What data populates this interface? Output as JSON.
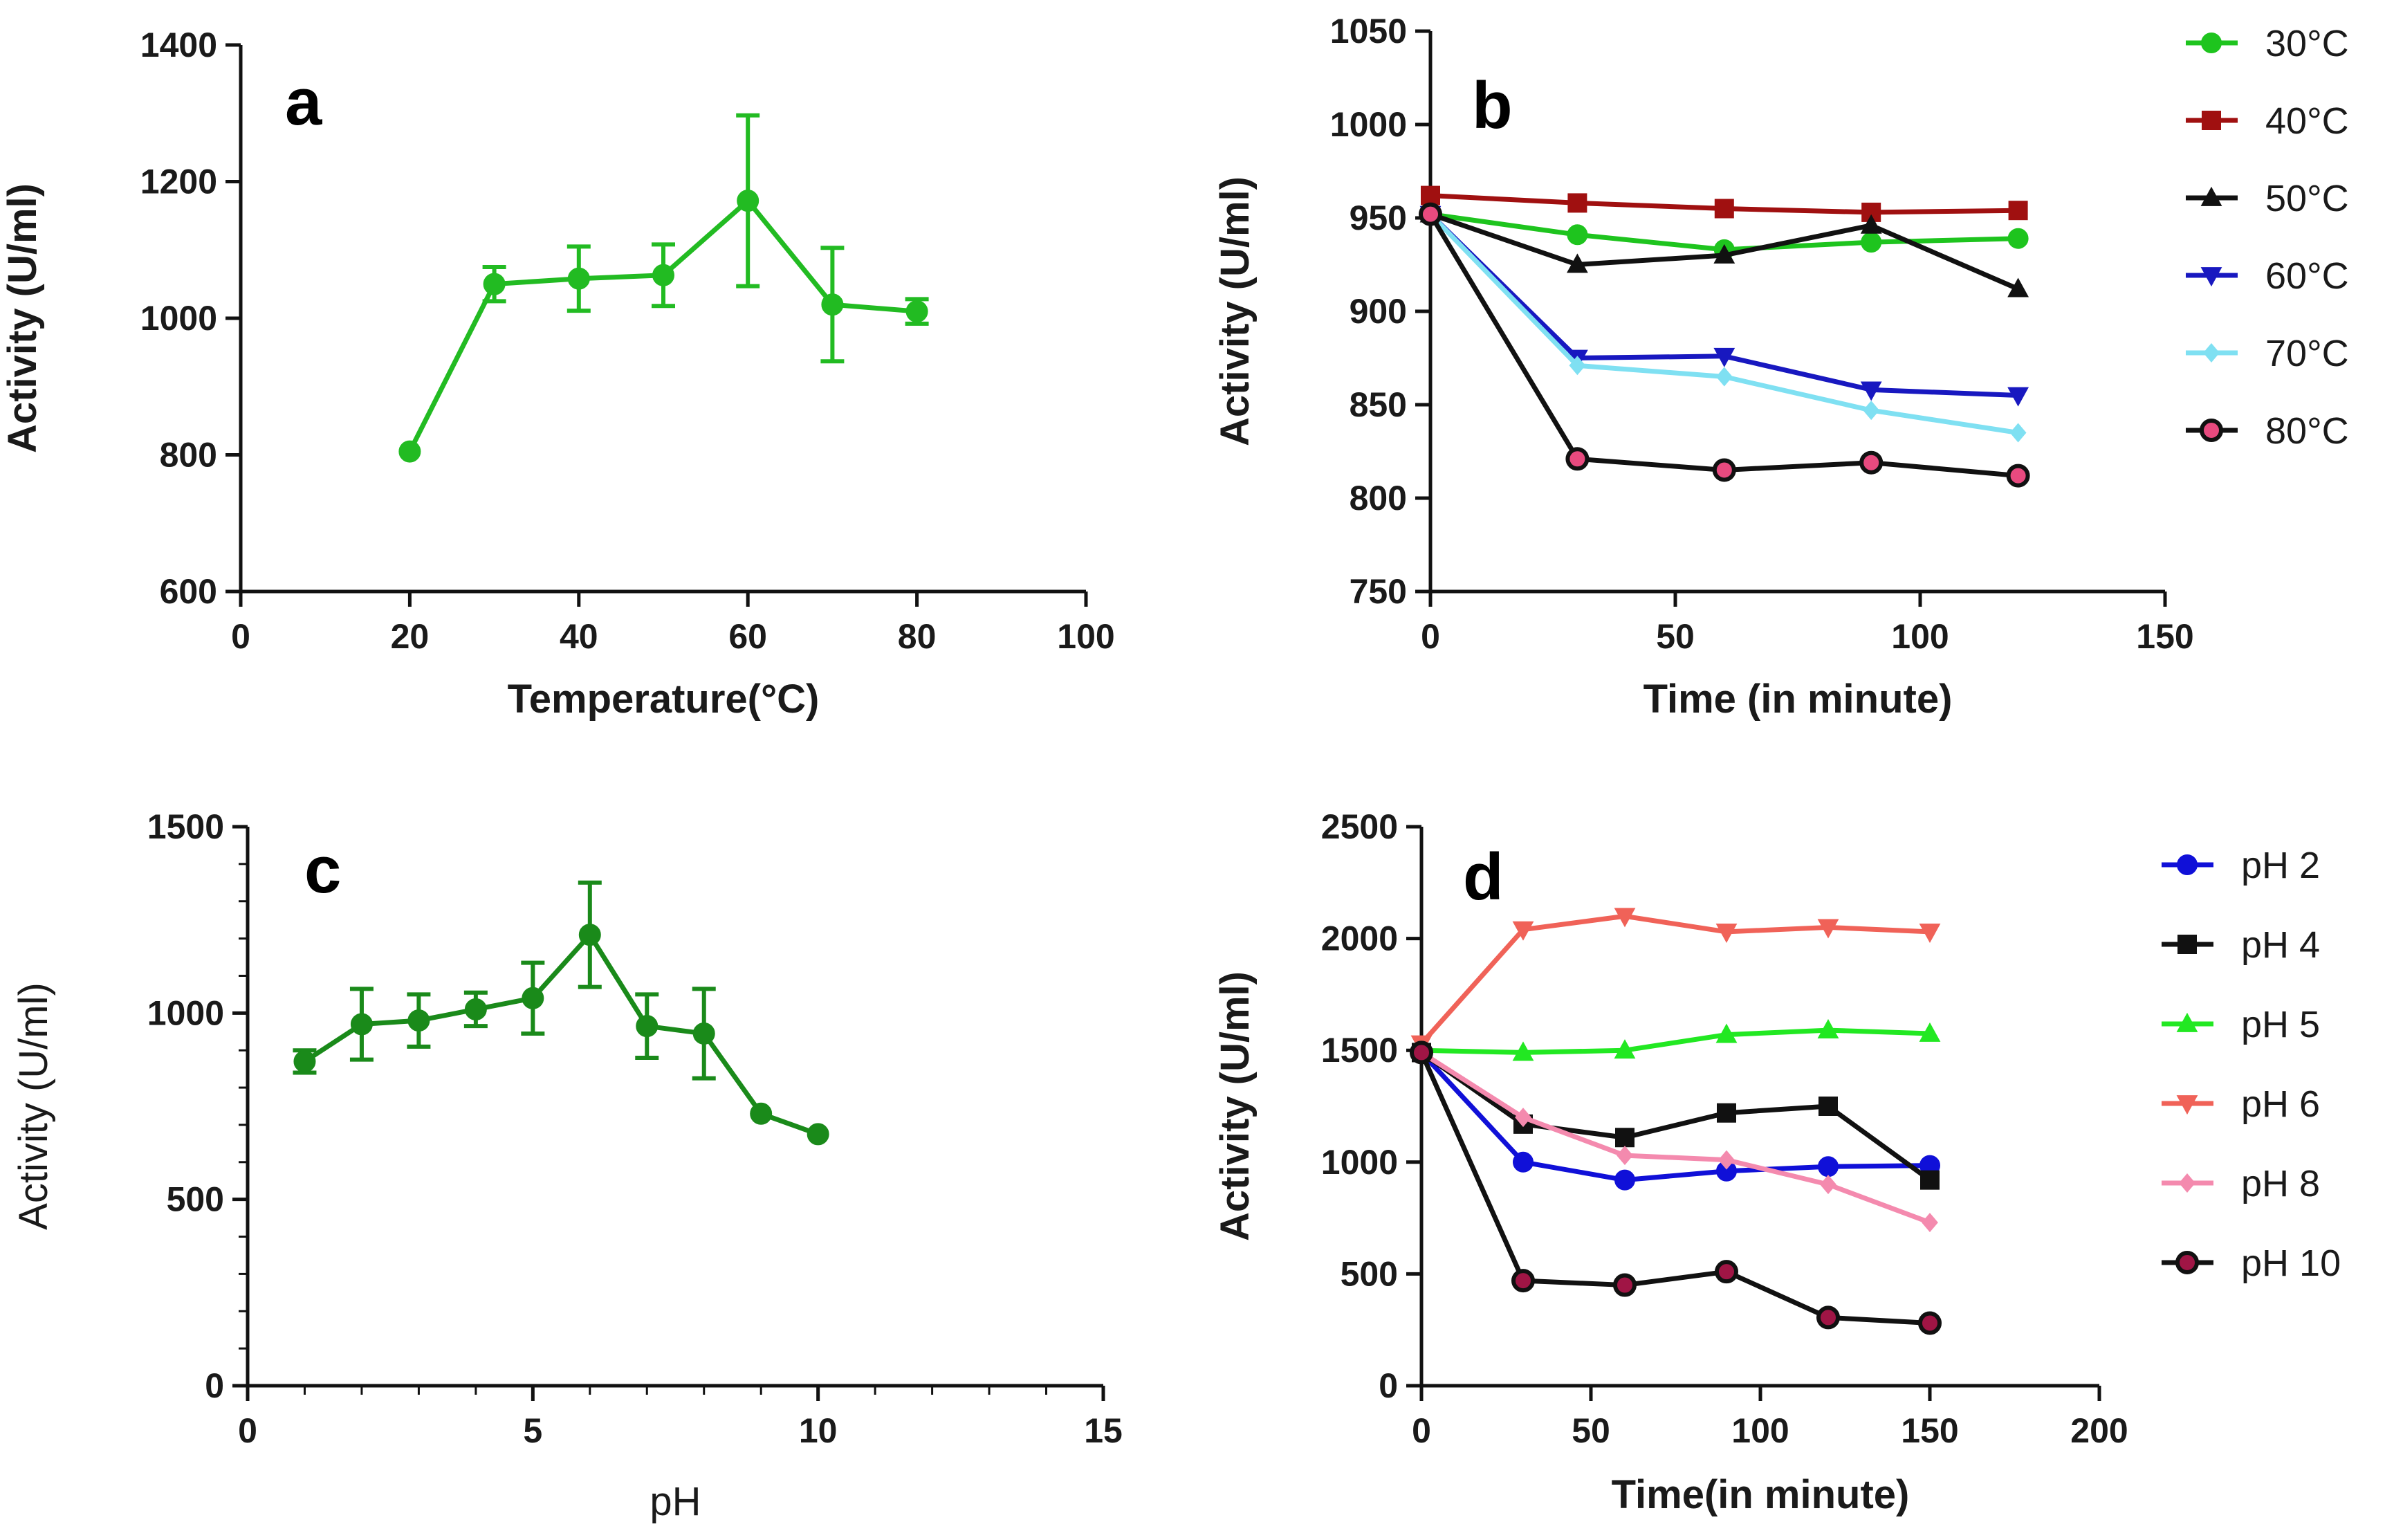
{
  "chart_data": [
    {
      "panel": "a",
      "type": "line",
      "xlabel": "Temperature(°C)",
      "ylabel": "Activity (U/ml)",
      "xlim": [
        0,
        100
      ],
      "ylim": [
        600,
        1400
      ],
      "xticks": [
        0,
        20,
        40,
        60,
        80,
        100
      ],
      "yticks": [
        600,
        800,
        1000,
        1200,
        1400
      ],
      "series": [
        {
          "name": "Activity",
          "color": "#22bb22",
          "marker": "circle",
          "x": [
            20,
            30,
            40,
            50,
            60,
            70,
            80
          ],
          "y": [
            805,
            1050,
            1058,
            1063,
            1172,
            1020,
            1010
          ],
          "err": [
            0,
            25,
            47,
            45,
            125,
            83,
            18
          ]
        }
      ]
    },
    {
      "panel": "b",
      "type": "line",
      "xlabel": "Time (in minute)",
      "ylabel": "Activity (U/ml)",
      "xlim": [
        0,
        150
      ],
      "ylim": [
        750,
        1050
      ],
      "xticks": [
        0,
        50,
        100,
        150
      ],
      "yticks": [
        750,
        800,
        850,
        900,
        950,
        1000,
        1050
      ],
      "legend": "right",
      "series": [
        {
          "name": "30°C",
          "color": "#1ec41e",
          "marker": "circle",
          "x": [
            0,
            30,
            60,
            90,
            120
          ],
          "y": [
            952,
            941,
            933,
            937,
            939
          ]
        },
        {
          "name": "40°C",
          "color": "#a01010",
          "marker": "square",
          "x": [
            0,
            30,
            60,
            90,
            120
          ],
          "y": [
            962,
            958,
            955,
            953,
            954
          ]
        },
        {
          "name": "50°C",
          "color": "#111111",
          "marker": "triangle-up",
          "x": [
            0,
            30,
            60,
            90,
            120
          ],
          "y": [
            952,
            925,
            930,
            946,
            912
          ]
        },
        {
          "name": "60°C",
          "color": "#1818c0",
          "marker": "triangle-down",
          "x": [
            0,
            30,
            60,
            90,
            120
          ],
          "y": [
            952,
            875,
            876,
            858,
            855
          ]
        },
        {
          "name": "70°C",
          "color": "#7fe0f2",
          "marker": "diamond",
          "x": [
            0,
            30,
            60,
            90,
            120
          ],
          "y": [
            952,
            871,
            865,
            847,
            835
          ]
        },
        {
          "name": "80°C",
          "color": "#111111",
          "fill": "#e84a7f",
          "marker": "circle-outline",
          "x": [
            0,
            30,
            60,
            90,
            120
          ],
          "y": [
            952,
            821,
            815,
            819,
            812
          ]
        }
      ]
    },
    {
      "panel": "c",
      "type": "line",
      "xlabel": "pH",
      "ylabel": "Activity (U/ml)",
      "xlim": [
        0,
        15
      ],
      "ylim": [
        0,
        1500
      ],
      "xticks": [
        0,
        5,
        10,
        15
      ],
      "yticks": [
        0,
        500,
        1000,
        1500
      ],
      "series": [
        {
          "name": "Activity",
          "color": "#1a8a1a",
          "marker": "circle",
          "x": [
            1,
            2,
            3,
            4,
            5,
            6,
            7,
            8,
            9,
            10
          ],
          "y": [
            870,
            970,
            980,
            1010,
            1040,
            1210,
            965,
            945,
            730,
            675
          ],
          "err": [
            30,
            95,
            70,
            45,
            95,
            140,
            85,
            120,
            0,
            0
          ]
        }
      ]
    },
    {
      "panel": "d",
      "type": "line",
      "xlabel": "Time(in minute)",
      "ylabel": "Activity (U/ml)",
      "xlim": [
        0,
        200
      ],
      "ylim": [
        0,
        2500
      ],
      "xticks": [
        0,
        50,
        100,
        150,
        200
      ],
      "yticks": [
        0,
        500,
        1000,
        1500,
        2000,
        2500
      ],
      "legend": "right",
      "series": [
        {
          "name": "pH 2",
          "color": "#1010d8",
          "marker": "circle",
          "x": [
            0,
            30,
            60,
            90,
            120,
            150
          ],
          "y": [
            1490,
            1000,
            920,
            960,
            980,
            985
          ]
        },
        {
          "name": "pH 4",
          "color": "#111111",
          "marker": "square",
          "x": [
            0,
            30,
            60,
            90,
            120,
            150
          ],
          "y": [
            1490,
            1170,
            1110,
            1220,
            1250,
            920
          ]
        },
        {
          "name": "pH 5",
          "color": "#22e822",
          "marker": "triangle-up",
          "x": [
            0,
            30,
            60,
            90,
            120,
            150
          ],
          "y": [
            1500,
            1490,
            1500,
            1570,
            1590,
            1575
          ]
        },
        {
          "name": "pH 6",
          "color": "#f06258",
          "marker": "triangle-down",
          "x": [
            0,
            30,
            60,
            90,
            120,
            150
          ],
          "y": [
            1530,
            2040,
            2100,
            2030,
            2050,
            2030
          ]
        },
        {
          "name": "pH 8",
          "color": "#f48aae",
          "marker": "diamond",
          "x": [
            0,
            30,
            60,
            90,
            120,
            150
          ],
          "y": [
            1490,
            1200,
            1030,
            1010,
            900,
            730
          ]
        },
        {
          "name": "pH 10",
          "color": "#111111",
          "fill": "#a01545",
          "marker": "circle-outline",
          "x": [
            0,
            30,
            60,
            90,
            120,
            150
          ],
          "y": [
            1490,
            470,
            450,
            510,
            305,
            280
          ]
        }
      ]
    }
  ]
}
